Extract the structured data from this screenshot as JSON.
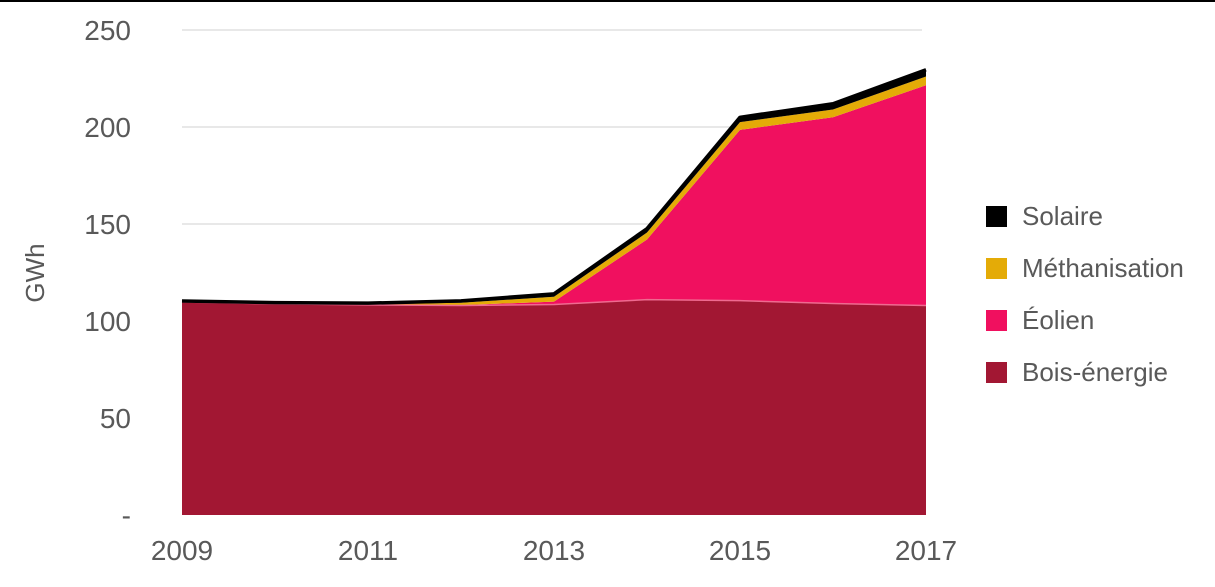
{
  "figure": {
    "background": "#FFFFFF",
    "top_border_color": "#000000"
  },
  "chart_data": {
    "type": "area",
    "stacked": true,
    "title": "",
    "xlabel": "",
    "ylabel": "GWh",
    "x": [
      2009,
      2010,
      2011,
      2012,
      2013,
      2014,
      2015,
      2016,
      2017
    ],
    "series": [
      {
        "key": "bois-energie",
        "name": "Bois-énergie",
        "color": "#A21733",
        "edge_color": "#EF6A90",
        "values": [
          109.8,
          108.8,
          108.3,
          108.0,
          108.5,
          111.0,
          110.5,
          109.0,
          108.0
        ]
      },
      {
        "key": "eolien",
        "name": "Éolien",
        "color": "#F0105F",
        "values": [
          0,
          0,
          0,
          0.2,
          1.5,
          31.0,
          88.0,
          96.0,
          113.5
        ]
      },
      {
        "key": "methanisation",
        "name": "Méthanisation",
        "color": "#E4AB07",
        "values": [
          0.1,
          0.2,
          0.3,
          1.2,
          2.5,
          3.6,
          4.0,
          4.0,
          4.5
        ]
      },
      {
        "key": "solaire",
        "name": "Solaire",
        "color": "#000000",
        "values": [
          0.4,
          0.5,
          0.6,
          1.0,
          1.5,
          2.0,
          2.5,
          3.0,
          3.5
        ]
      }
    ],
    "totals": [
      110.3,
      109.5,
      109.2,
      110.4,
      114.0,
      147.6,
      205.0,
      212.0,
      229.5
    ],
    "ylim": [
      0,
      250
    ],
    "yticks": [
      0,
      50,
      100,
      150,
      200,
      250
    ],
    "ytick_labels": [
      "-",
      "50",
      "100",
      "150",
      "200",
      "250"
    ],
    "xticks": [
      2009,
      2011,
      2013,
      2015,
      2017
    ],
    "xtick_labels": [
      "2009",
      "2011",
      "2013",
      "2015",
      "2017"
    ],
    "grid": "horizontal",
    "gridline_color": "#D9D9D9",
    "axis_text_color": "#595959",
    "outline_color": "#000000",
    "legend": {
      "position": "right",
      "items": [
        {
          "label": "Solaire",
          "color": "#000000"
        },
        {
          "label": "Méthanisation",
          "color": "#E4AB07"
        },
        {
          "label": "Éolien",
          "color": "#F0105F"
        },
        {
          "label": "Bois-énergie",
          "color": "#A21733"
        }
      ]
    }
  }
}
